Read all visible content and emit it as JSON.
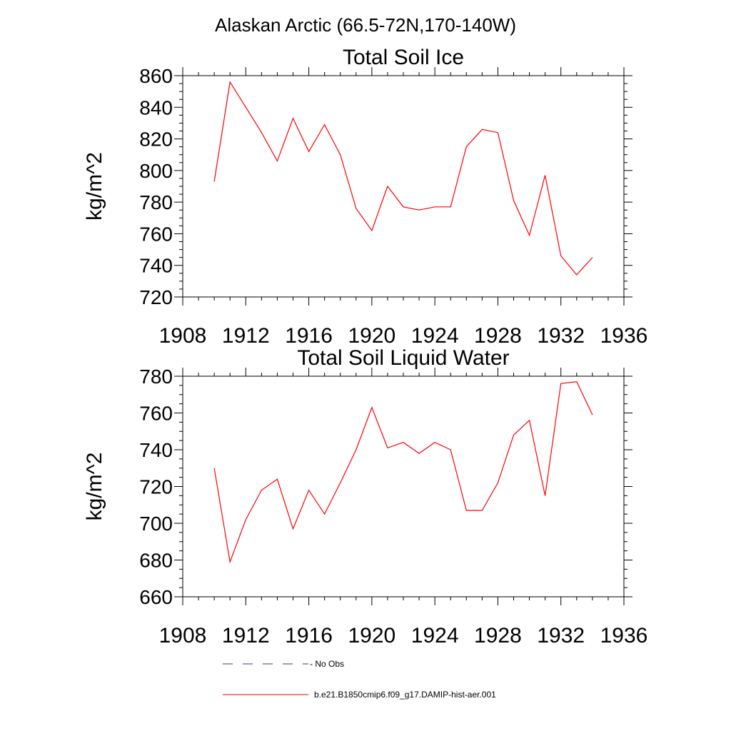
{
  "page_title": "Alaskan Arctic (66.5-72N,170-140W)",
  "series_color": "#ff0000",
  "obs_color": "#3a3a6a",
  "legend": {
    "obs_label": "- No Obs",
    "model_label": "b.e21.B1850cmip6.f09_g17.DAMIP-hist-aer.001"
  },
  "chart_data": [
    {
      "type": "line",
      "title": "Total Soil Ice",
      "ylabel": "kg/m^2",
      "xlabel": "",
      "xlim": [
        1908,
        1936
      ],
      "ylim": [
        720,
        860
      ],
      "xticks": [
        1908,
        1912,
        1916,
        1920,
        1924,
        1928,
        1932,
        1936
      ],
      "yticks": [
        720,
        740,
        760,
        780,
        800,
        820,
        840,
        860
      ],
      "x": [
        1910,
        1911,
        1912,
        1913,
        1914,
        1915,
        1916,
        1917,
        1918,
        1919,
        1920,
        1921,
        1922,
        1923,
        1924,
        1925,
        1926,
        1927,
        1928,
        1929,
        1930,
        1931,
        1932,
        1933,
        1934
      ],
      "series": [
        {
          "name": "b.e21.B1850cmip6.f09_g17.DAMIP-hist-aer.001",
          "values": [
            793,
            856,
            840,
            824,
            806,
            833,
            812,
            829,
            810,
            776,
            762,
            790,
            777,
            775,
            777,
            777,
            815,
            826,
            824,
            781,
            759,
            797,
            746,
            734,
            745
          ]
        }
      ]
    },
    {
      "type": "line",
      "title": "Total Soil Liquid Water",
      "ylabel": "kg/m^2",
      "xlabel": "",
      "xlim": [
        1908,
        1936
      ],
      "ylim": [
        660,
        780
      ],
      "xticks": [
        1908,
        1912,
        1916,
        1920,
        1924,
        1928,
        1932,
        1936
      ],
      "yticks": [
        660,
        680,
        700,
        720,
        740,
        760,
        780
      ],
      "x": [
        1910,
        1911,
        1912,
        1913,
        1914,
        1915,
        1916,
        1917,
        1918,
        1919,
        1920,
        1921,
        1922,
        1923,
        1924,
        1925,
        1926,
        1927,
        1928,
        1929,
        1930,
        1931,
        1932,
        1933,
        1934
      ],
      "series": [
        {
          "name": "b.e21.B1850cmip6.f09_g17.DAMIP-hist-aer.001",
          "values": [
            730,
            679,
            702,
            718,
            724,
            697,
            718,
            705,
            722,
            740,
            763,
            741,
            744,
            738,
            744,
            740,
            707,
            707,
            722,
            748,
            756,
            715,
            776,
            777,
            759
          ]
        }
      ]
    }
  ]
}
